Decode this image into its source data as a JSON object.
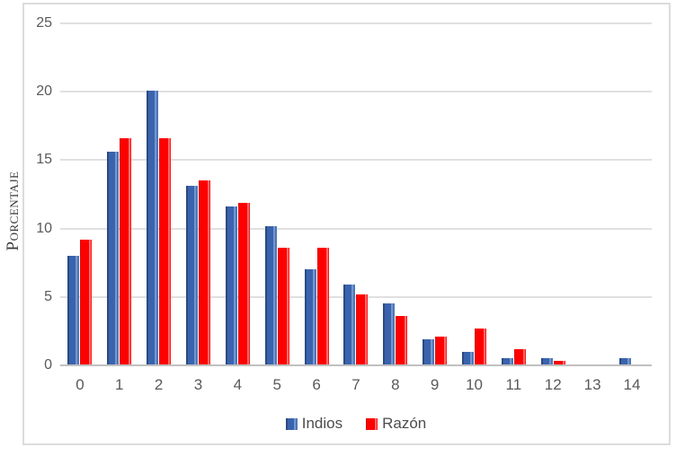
{
  "chart_data": {
    "type": "bar",
    "title": "",
    "categories": [
      "0",
      "1",
      "2",
      "3",
      "4",
      "5",
      "6",
      "7",
      "8",
      "9",
      "10",
      "11",
      "12",
      "13",
      "14"
    ],
    "series": [
      {
        "name": "Indios",
        "color": "#3A62AB",
        "values": [
          8.0,
          15.6,
          20.1,
          13.1,
          11.6,
          10.2,
          7.0,
          5.9,
          4.5,
          1.9,
          1.0,
          0.5,
          0.5,
          0,
          0.5
        ]
      },
      {
        "name": "Razón",
        "color": "#FE0000",
        "values": [
          9.2,
          16.6,
          16.6,
          13.5,
          11.9,
          8.6,
          8.6,
          5.2,
          3.6,
          2.1,
          2.7,
          1.2,
          0.3,
          0,
          0
        ]
      }
    ],
    "xlabel": "",
    "ylabel": "Porcentaje",
    "ylim": [
      0,
      25
    ],
    "yticks": [
      0,
      5,
      10,
      15,
      20,
      25
    ],
    "grid": true,
    "legend_position": "bottom",
    "colors": {
      "gridline": "#E0E0E0",
      "axis_line": "#C0C0C0",
      "tick_text": "#595959",
      "frame_border": "#DCDCDC"
    }
  }
}
